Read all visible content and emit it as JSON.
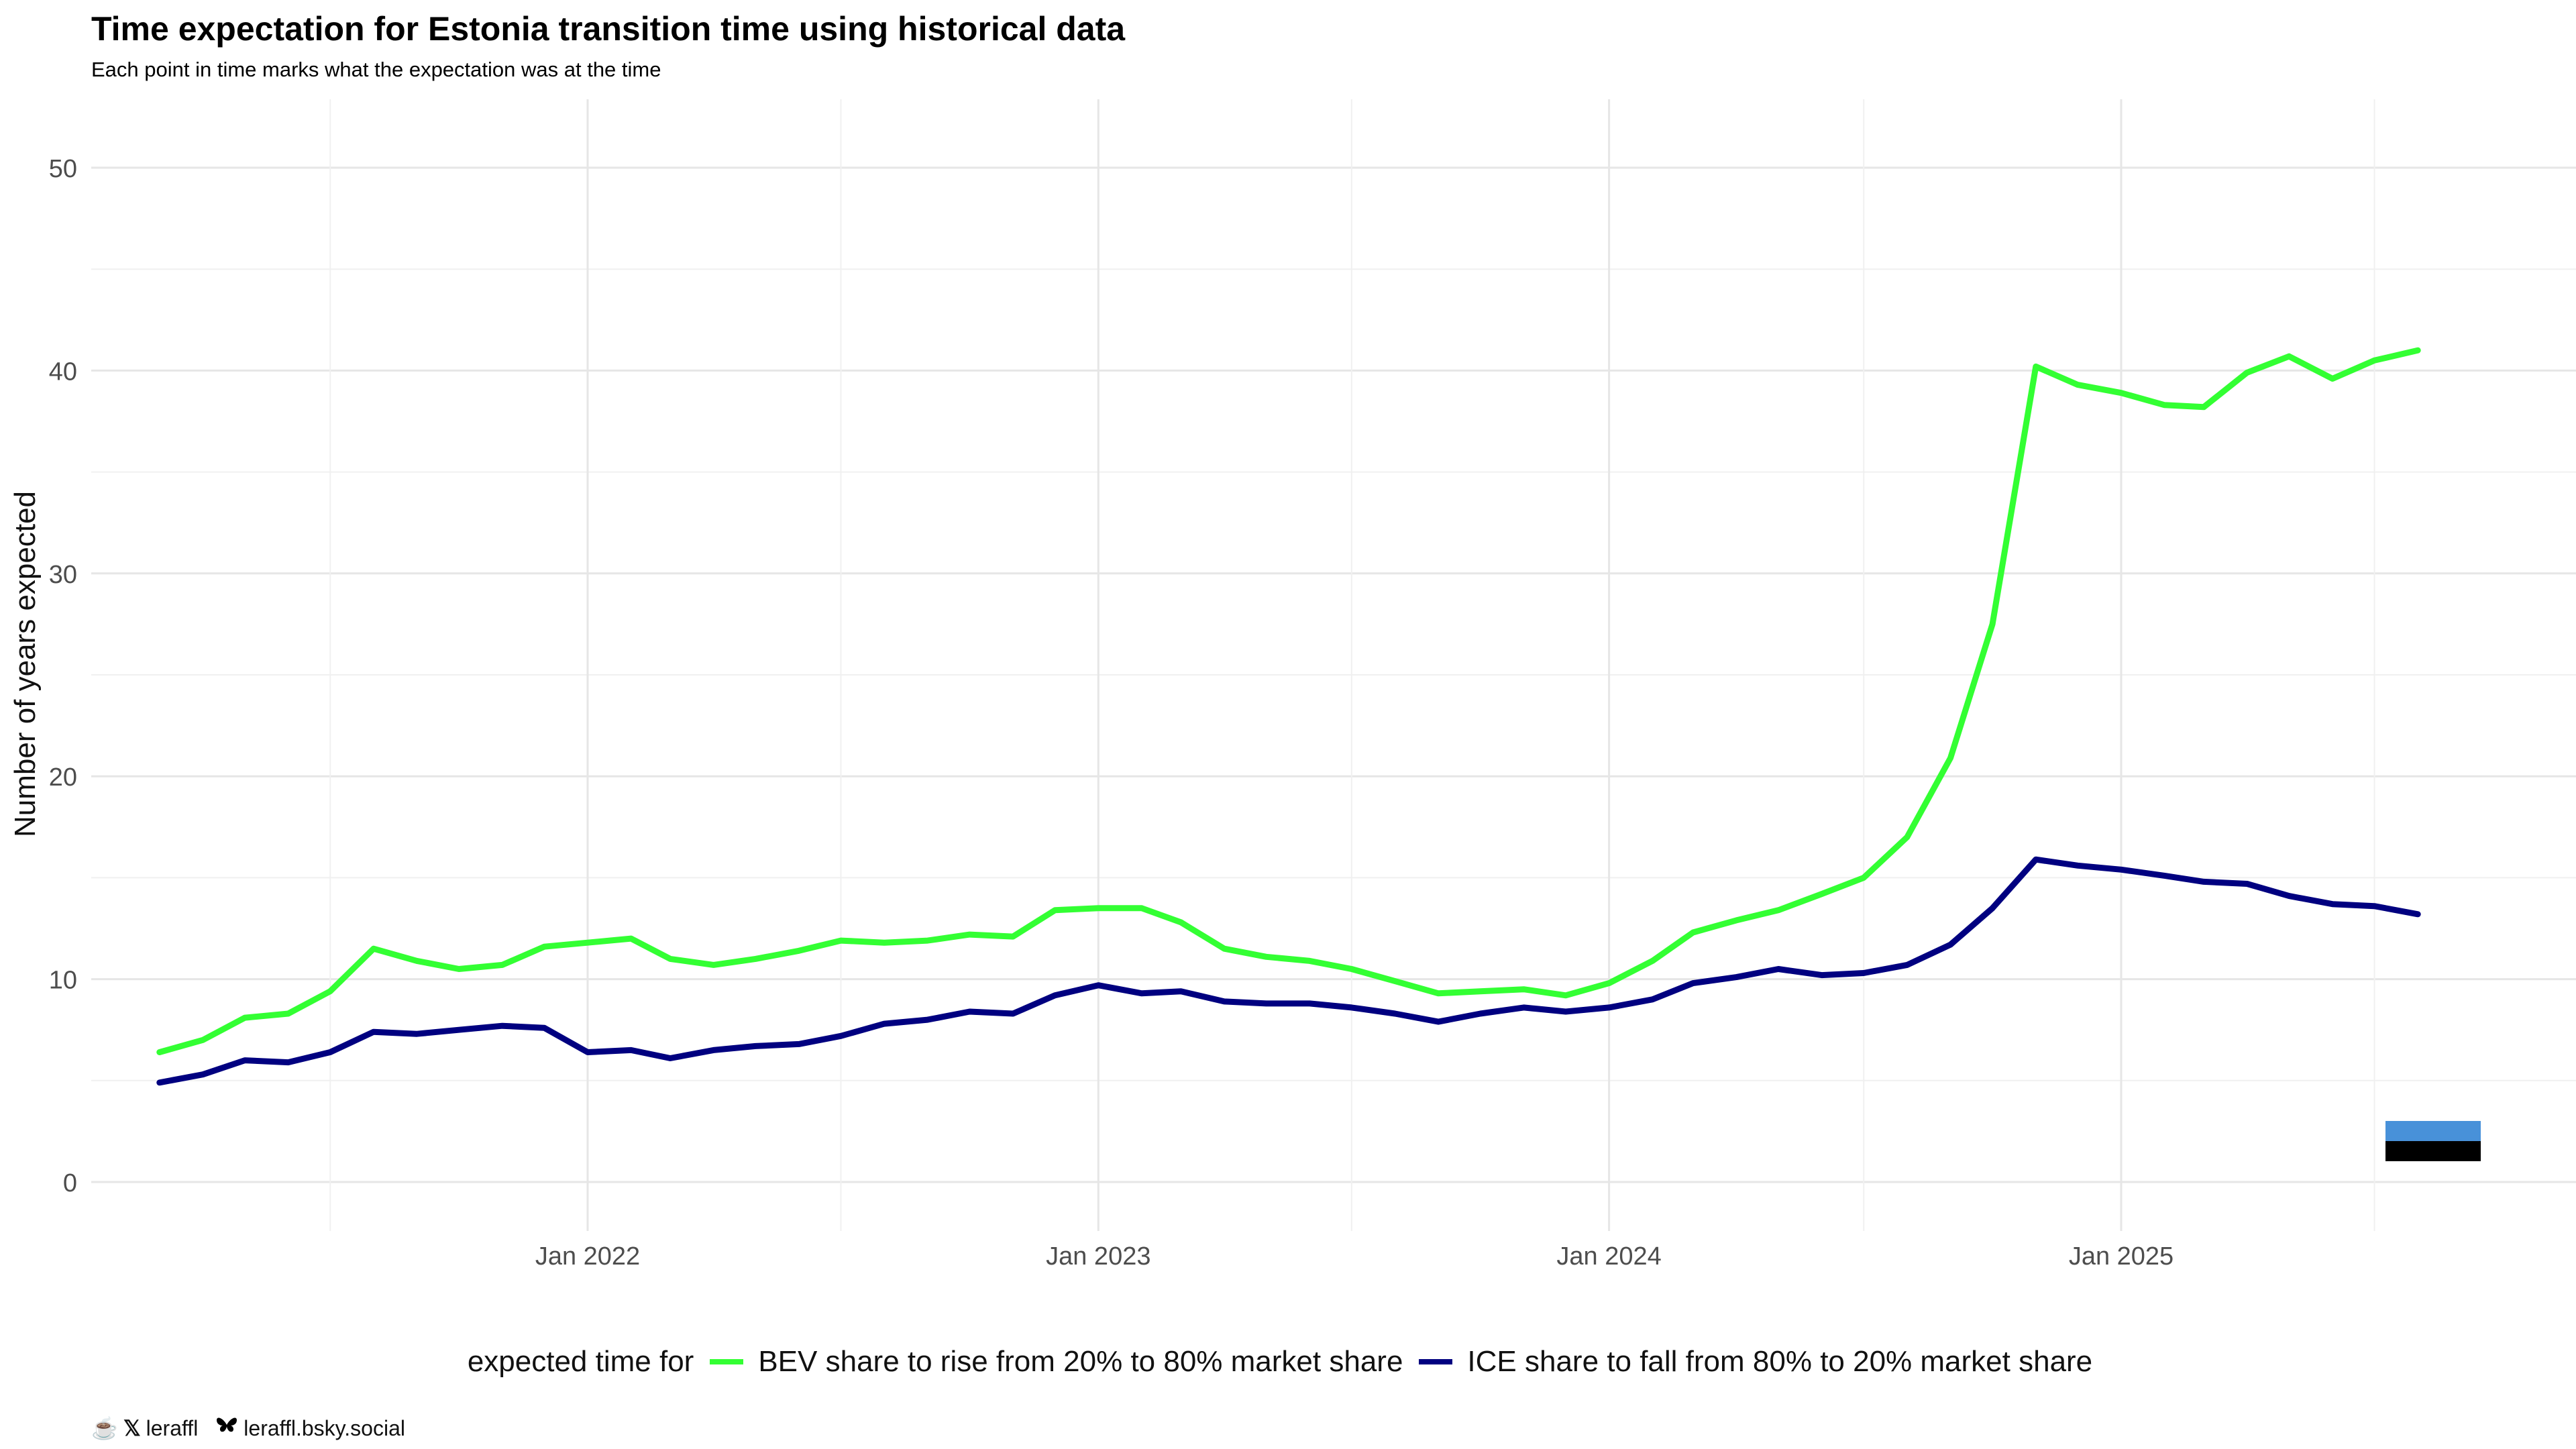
{
  "title": "Time expectation for Estonia transition time using historical data",
  "subtitle": "Each point in time marks what the expectation was at the time",
  "legend": {
    "title": "expected time for",
    "items": [
      {
        "label": "BEV share to rise from 20% to 80% market share",
        "color": "#33ff33"
      },
      {
        "label": "ICE share to fall from 80% to 20% market share",
        "color": "#000080"
      }
    ]
  },
  "caption": {
    "icons": [
      "coffee-icon",
      "x-twitter-icon",
      "butterfly-icon"
    ],
    "handle": "leraffl",
    "bluesky": "leraffl.bsky.social"
  },
  "flag": {
    "colors": [
      "#4891d9",
      "#000000",
      "#ffffff"
    ]
  },
  "chart_data": {
    "type": "line",
    "xlabel": "",
    "ylabel": "Number of years expected",
    "xlim": [
      "2021-03-01",
      "2025-09-01"
    ],
    "ylim": [
      0,
      50
    ],
    "x_ticks": [
      {
        "date": "2022-01-01",
        "label": "Jan 2022"
      },
      {
        "date": "2023-01-01",
        "label": "Jan 2023"
      },
      {
        "date": "2024-01-01",
        "label": "Jan 2024"
      },
      {
        "date": "2025-01-01",
        "label": "Jan 2025"
      }
    ],
    "y_ticks": [
      0,
      10,
      20,
      30,
      40,
      50
    ],
    "grid": true,
    "legend_position": "bottom",
    "x": [
      "2021-03",
      "2021-04",
      "2021-05",
      "2021-06",
      "2021-07",
      "2021-08",
      "2021-09",
      "2021-10",
      "2021-11",
      "2021-12",
      "2022-01",
      "2022-02",
      "2022-03",
      "2022-04",
      "2022-05",
      "2022-06",
      "2022-07",
      "2022-08",
      "2022-09",
      "2022-10",
      "2022-11",
      "2022-12",
      "2023-01",
      "2023-02",
      "2023-03",
      "2023-04",
      "2023-05",
      "2023-06",
      "2023-07",
      "2023-08",
      "2023-09",
      "2023-10",
      "2023-11",
      "2023-12",
      "2024-01",
      "2024-02",
      "2024-03",
      "2024-04",
      "2024-05",
      "2024-06",
      "2024-07",
      "2024-08",
      "2024-09",
      "2024-10",
      "2024-11",
      "2024-12",
      "2025-01",
      "2025-02",
      "2025-03",
      "2025-04",
      "2025-05",
      "2025-06",
      "2025-07",
      "2025-08"
    ],
    "series": [
      {
        "name": "BEV share to rise from 20% to 80% market share",
        "color": "#33ff33",
        "values": [
          6.4,
          7.0,
          8.1,
          8.3,
          9.4,
          11.5,
          10.9,
          10.5,
          10.7,
          11.6,
          11.8,
          12.0,
          11.0,
          10.7,
          11.0,
          11.4,
          11.9,
          11.8,
          11.9,
          12.2,
          12.1,
          13.4,
          13.5,
          13.5,
          12.8,
          11.5,
          11.1,
          10.9,
          10.5,
          9.9,
          9.3,
          9.4,
          9.5,
          9.2,
          9.8,
          10.9,
          12.3,
          12.9,
          13.4,
          14.2,
          15.0,
          17.0,
          20.9,
          27.5,
          40.2,
          39.3,
          38.9,
          38.3,
          38.2,
          39.9,
          40.7,
          39.6,
          40.5,
          41.0
        ]
      },
      {
        "name": "ICE share to fall from 80% to 20% market share",
        "color": "#000080",
        "values": [
          4.9,
          5.3,
          6.0,
          5.9,
          6.4,
          7.4,
          7.3,
          7.5,
          7.7,
          7.6,
          6.4,
          6.5,
          6.1,
          6.5,
          6.7,
          6.8,
          7.2,
          7.8,
          8.0,
          8.4,
          8.3,
          9.2,
          9.7,
          9.3,
          9.4,
          8.9,
          8.8,
          8.8,
          8.6,
          8.3,
          7.9,
          8.3,
          8.6,
          8.4,
          8.6,
          9.0,
          9.8,
          10.1,
          10.5,
          10.2,
          10.3,
          10.7,
          11.7,
          13.5,
          15.9,
          15.6,
          15.4,
          15.1,
          14.8,
          14.7,
          14.1,
          13.7,
          13.6,
          13.2
        ]
      }
    ]
  }
}
